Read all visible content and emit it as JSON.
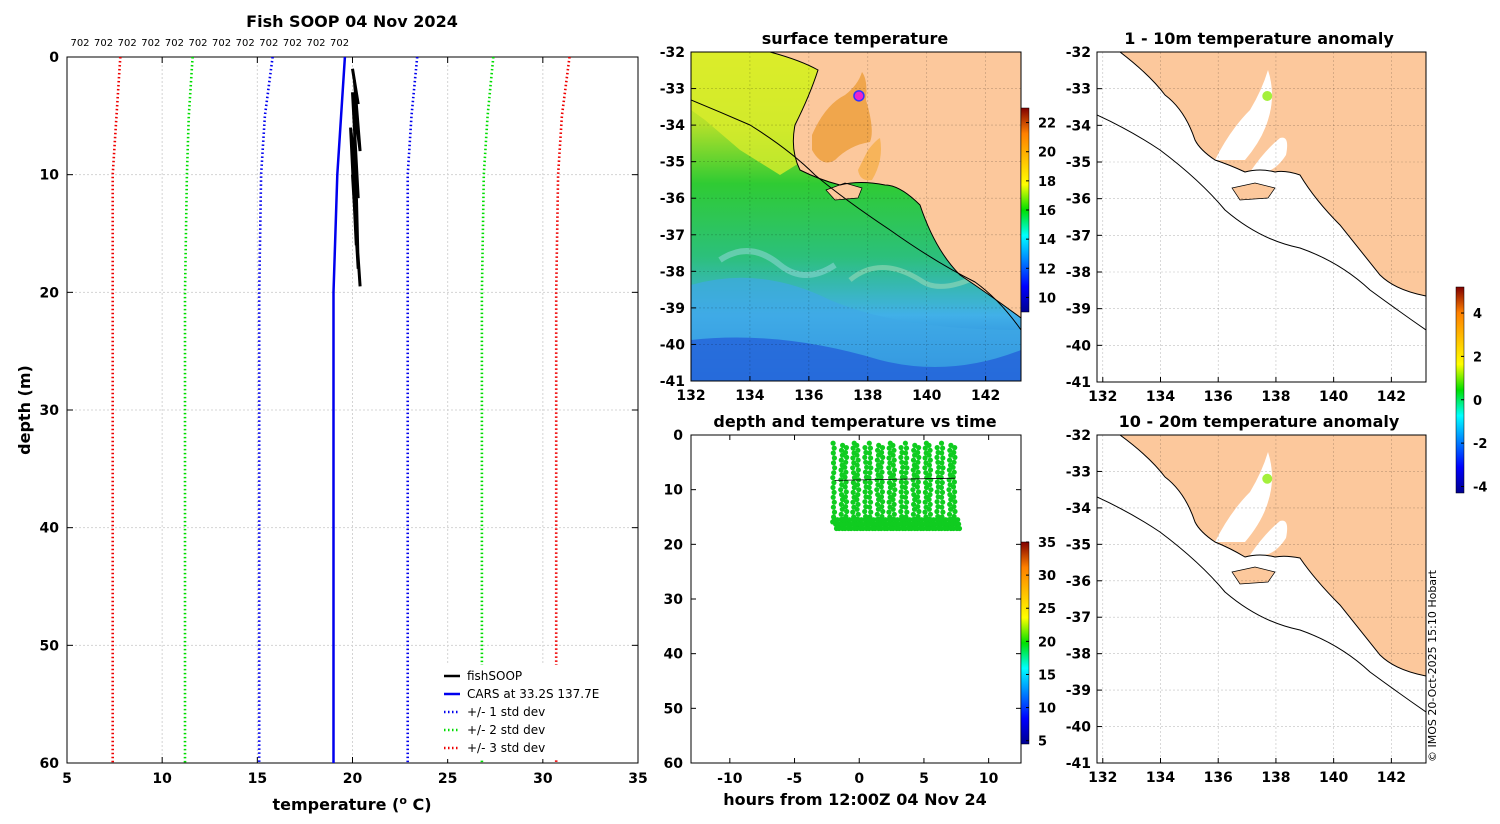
{
  "page": {
    "main_title": "Fish SOOP 04 Nov 2024",
    "credit": "© IMOS 20-Oct-2025 15:10 Hobart",
    "colors": {
      "fish": "#000000",
      "cars": "#0000ee",
      "std1": "#0000ee",
      "std2": "#00dd00",
      "std3": "#ee0000",
      "land": "#fcc89c",
      "marker": "#a4f03c"
    }
  },
  "chart_data": [
    {
      "id": "profile",
      "type": "line",
      "title": "Fish SOOP 04 Nov 2024",
      "xlabel": "temperature (°C)",
      "xlabel_main": "temperature (",
      "xlabel_sup": "o",
      "xlabel_end": " C)",
      "ylabel": "depth (m)",
      "xlim": [
        5,
        35
      ],
      "ylim": [
        60,
        0
      ],
      "xticks": [
        5,
        10,
        15,
        20,
        25,
        30,
        35
      ],
      "yticks": [
        0,
        10,
        20,
        30,
        40,
        50,
        60
      ],
      "top_labels": [
        "702",
        "702",
        "702",
        "702",
        "702",
        "702",
        "702",
        "702",
        "702",
        "702",
        "702",
        "702"
      ],
      "series": [
        {
          "name": "fishSOOP",
          "style": "solid",
          "color": "#000000",
          "x": [
            20.0,
            20.3,
            20.1,
            20.4,
            20.0,
            20.3,
            19.9,
            20.2,
            20.1,
            20.3,
            20.0,
            20.4
          ],
          "y": [
            1,
            4,
            2,
            8,
            3,
            12,
            6,
            16,
            5,
            18,
            10,
            19.5
          ]
        },
        {
          "name": "CARS at 33.2S 137.7E",
          "style": "solid",
          "color": "#0000ee",
          "x": [
            19.6,
            19.4,
            19.2,
            19.0,
            19.0,
            19.0
          ],
          "y": [
            0,
            5,
            10,
            20,
            40,
            60
          ]
        },
        {
          "name": "+/- 1 std dev",
          "style": "dotted",
          "color": "#0000ee",
          "x": [
            15.8,
            15.4,
            15.2,
            15.1,
            15.1,
            15.1
          ],
          "y": [
            0,
            5,
            10,
            20,
            40,
            60
          ]
        },
        {
          "name": "",
          "style": "dotted",
          "color": "#0000ee",
          "x": [
            23.4,
            23.1,
            22.9,
            22.9,
            22.9,
            22.9
          ],
          "y": [
            0,
            5,
            10,
            20,
            40,
            60
          ]
        },
        {
          "name": "+/- 2 std dev",
          "style": "dotted",
          "color": "#00dd00",
          "x": [
            11.6,
            11.4,
            11.3,
            11.2,
            11.2,
            11.2
          ],
          "y": [
            0,
            5,
            10,
            20,
            40,
            60
          ]
        },
        {
          "name": "",
          "style": "dotted",
          "color": "#00dd00",
          "x": [
            27.4,
            27.1,
            26.9,
            26.8,
            26.8,
            26.8
          ],
          "y": [
            0,
            5,
            10,
            20,
            40,
            60
          ]
        },
        {
          "name": "+/- 3 std dev",
          "style": "dotted",
          "color": "#ee0000",
          "x": [
            7.8,
            7.6,
            7.4,
            7.4,
            7.4,
            7.4
          ],
          "y": [
            0,
            5,
            10,
            20,
            40,
            60
          ]
        },
        {
          "name": "",
          "style": "dotted",
          "color": "#ee0000",
          "x": [
            31.4,
            31.0,
            30.8,
            30.7,
            30.7,
            30.7
          ],
          "y": [
            0,
            5,
            10,
            20,
            40,
            60
          ]
        }
      ],
      "legend": [
        "fishSOOP",
        "CARS at 33.2S 137.7E",
        "+/- 1 std dev",
        "+/- 2 std dev",
        "+/- 3 std dev"
      ],
      "legend_position": "bottom-right"
    },
    {
      "id": "sst",
      "type": "heatmap",
      "title": "surface temperature",
      "xlim": [
        132,
        143.2
      ],
      "ylim": [
        -41,
        -32
      ],
      "xticks": [
        132,
        134,
        136,
        138,
        140,
        142
      ],
      "yticks": [
        -32,
        -33,
        -34,
        -35,
        -36,
        -37,
        -38,
        -39,
        -40,
        -41
      ],
      "colorbar": {
        "range": [
          9,
          23
        ],
        "ticks": [
          10,
          12,
          14,
          16,
          18,
          20,
          22
        ]
      },
      "marker": {
        "lon": 137.7,
        "lat": -33.2
      }
    },
    {
      "id": "depth_time",
      "type": "scatter",
      "title": "depth and temperature vs time",
      "xlabel": "hours from 12:00Z 04 Nov 24",
      "xlim": [
        -13,
        12.5
      ],
      "ylim": [
        60,
        0
      ],
      "xticks": [
        -10,
        -5,
        0,
        5,
        10
      ],
      "yticks": [
        0,
        10,
        20,
        30,
        40,
        50,
        60
      ],
      "colorbar": {
        "range": [
          4.5,
          35
        ],
        "ticks": [
          5,
          10,
          15,
          20,
          25,
          30,
          35
        ]
      },
      "casts": {
        "t_start": -1.9,
        "t_end": 7.4,
        "count": 21,
        "depth_top": 1.5,
        "depth_bottom": 16.5,
        "temperature": 20
      },
      "mean_line": {
        "t": [
          -1.9,
          7.4
        ],
        "depth": [
          8.3,
          7.9
        ]
      }
    },
    {
      "id": "anom_1_10",
      "type": "heatmap",
      "title": "1 - 10m temperature anomaly",
      "xlim": [
        131.8,
        143.2
      ],
      "ylim": [
        -41,
        -32
      ],
      "xticks": [
        132,
        134,
        136,
        138,
        140,
        142
      ],
      "yticks": [
        -32,
        -33,
        -34,
        -35,
        -36,
        -37,
        -38,
        -39,
        -40,
        -41
      ],
      "marker": {
        "lon": 137.7,
        "lat": -33.2
      }
    },
    {
      "id": "anom_10_20",
      "type": "heatmap",
      "title": "10 - 20m temperature anomaly",
      "xlim": [
        131.8,
        143.2
      ],
      "ylim": [
        -41,
        -32
      ],
      "xticks": [
        132,
        134,
        136,
        138,
        140,
        142
      ],
      "yticks": [
        -32,
        -33,
        -34,
        -35,
        -36,
        -37,
        -38,
        -39,
        -40,
        -41
      ],
      "colorbar": {
        "range": [
          -4.3,
          5.2
        ],
        "ticks": [
          -4,
          -2,
          0,
          2,
          4
        ]
      },
      "marker": {
        "lon": 137.7,
        "lat": -33.2
      }
    }
  ]
}
